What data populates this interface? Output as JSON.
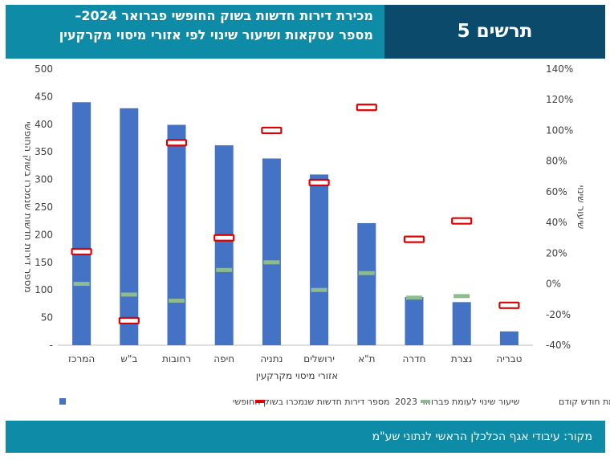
{
  "header": {
    "title_line1": "מכירת דירות חדשות בשוק החופשי פברואר 2024–",
    "title_line2": "מספר עסקאות ושיעור שינוי לפי אזורי מיסוי מקרקעין",
    "figure_label": "תרשים 5"
  },
  "footer": {
    "source": "מקור: עיבודי אגף הכלכלן הראשי לנתוני שע\"מ"
  },
  "colors": {
    "header_left": "#0e8ba6",
    "header_right": "#0c4a6c",
    "bar": "#4472c4",
    "feb2023_marker": "#e00000",
    "prev_month_marker": "#8fbc8f"
  },
  "chart_data": {
    "type": "bar",
    "title": "",
    "xlabel": "אזורי מיסוי מקרקעין",
    "ylabel": "מספר דירות חדשות שנמכרו בשוק החופשי",
    "y2label": "שיעור שינוי",
    "ylim": [
      0,
      500
    ],
    "yticks": [
      "-",
      "50",
      "100",
      "150",
      "200",
      "250",
      "300",
      "350",
      "400",
      "450",
      "500"
    ],
    "y2lim": [
      -40,
      140
    ],
    "y2ticks": [
      "-40%",
      "-20%",
      "0%",
      "20%",
      "40%",
      "60%",
      "80%",
      "100%",
      "120%",
      "140%"
    ],
    "grid": false,
    "legend_position": "bottom",
    "categories": [
      "המרכז",
      "ב\"ש",
      "רחובות",
      "חיפה",
      "נתניה",
      "ירושלים",
      "ת\"א",
      "חדרה",
      "נצרת",
      "טבריה"
    ],
    "series": [
      {
        "name": "מספר דירות חדשות שנמכרו בשוק החופשי",
        "type": "bar",
        "axis": "left",
        "values": [
          440,
          429,
          399,
          362,
          338,
          309,
          221,
          87,
          78,
          25
        ]
      },
      {
        "name": "שיעור שינוי לעומת פברואר 2023",
        "type": "marker",
        "axis": "right",
        "values": [
          21,
          -24,
          92,
          30,
          100,
          66,
          115,
          29,
          41,
          -14
        ]
      },
      {
        "name": "שיעור שינוי לעומת חודש קודם",
        "type": "marker",
        "axis": "right",
        "values": [
          0,
          -7,
          -11,
          9,
          14,
          -4,
          7,
          -9,
          -8,
          null
        ]
      }
    ]
  }
}
